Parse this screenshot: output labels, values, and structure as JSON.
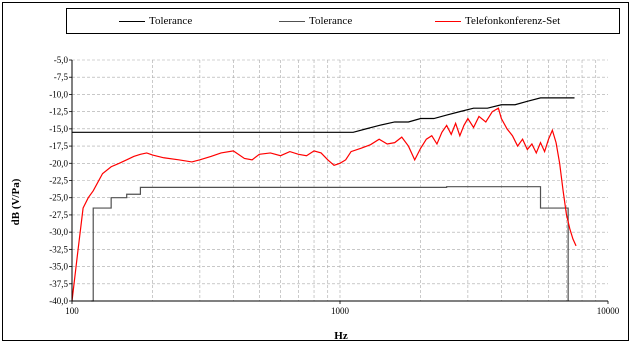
{
  "chart_data": {
    "type": "line",
    "title": "",
    "xlabel": "Hz",
    "ylabel": "dB (V/Pa)",
    "xscale": "log",
    "xlim": [
      100,
      10000
    ],
    "ylim": [
      -40,
      -5
    ],
    "grid": true,
    "legend_position": "top",
    "x_ticks": [
      100,
      1000,
      10000
    ],
    "x_tick_labels": [
      "100",
      "1000",
      "10000"
    ],
    "y_ticks": [
      -5,
      -7.5,
      -10,
      -12.5,
      -15,
      -17.5,
      -20,
      -22.5,
      -25,
      -27.5,
      -30,
      -32.5,
      -35,
      -37.5,
      -40
    ],
    "y_tick_labels": [
      "-5,0",
      "-7,5",
      "-10,0",
      "-12,5",
      "-15,0",
      "-17,5",
      "-20,0",
      "-22,5",
      "-25,0",
      "-27,5",
      "-30,0",
      "-32,5",
      "-35,0",
      "-37,5",
      "-40,0"
    ],
    "series": [
      {
        "name": "Tolerance",
        "color": "#000000",
        "x": [
          100,
          1120,
          1250,
          1400,
          1600,
          1800,
          2000,
          2240,
          2500,
          2800,
          3150,
          3550,
          4000,
          4500,
          5000,
          5600,
          6300,
          7500
        ],
        "y": [
          -15.5,
          -15.5,
          -15.0,
          -14.5,
          -14.0,
          -14.0,
          -13.5,
          -13.5,
          -13.0,
          -12.5,
          -12.0,
          -12.0,
          -11.5,
          -11.5,
          -11.0,
          -10.5,
          -10.5,
          -10.5
        ]
      },
      {
        "name": "Tolerance",
        "color": "#505050",
        "x": [
          118,
          120,
          120,
          140,
          140,
          160,
          160,
          180,
          180,
          2500,
          2500,
          5600,
          5600,
          5600,
          7100,
          7100
        ],
        "y": [
          -40,
          -40,
          -26.5,
          -26.5,
          -25,
          -25,
          -24.5,
          -24.5,
          -23.5,
          -23.5,
          -23.4,
          -23.4,
          -23.4,
          -26.5,
          -26.5,
          -40
        ]
      },
      {
        "name": "Telefonkonferenz-Set",
        "color": "#ff0000",
        "x": [
          100,
          105,
          110,
          115,
          120,
          130,
          140,
          150,
          160,
          170,
          180,
          190,
          200,
          220,
          250,
          280,
          300,
          330,
          360,
          400,
          440,
          470,
          500,
          550,
          600,
          650,
          700,
          750,
          800,
          850,
          900,
          950,
          1000,
          1050,
          1100,
          1200,
          1300,
          1400,
          1500,
          1600,
          1700,
          1800,
          1900,
          2000,
          2100,
          2200,
          2300,
          2400,
          2500,
          2600,
          2700,
          2800,
          2900,
          3000,
          3150,
          3300,
          3500,
          3700,
          3900,
          4000,
          4200,
          4400,
          4600,
          4800,
          5000,
          5200,
          5400,
          5600,
          5800,
          6000,
          6200,
          6400,
          6600,
          6800,
          7000,
          7200,
          7400,
          7600
        ],
        "y": [
          -40,
          -33,
          -26.5,
          -25,
          -24,
          -21.5,
          -20.5,
          -20,
          -19.5,
          -19,
          -18.7,
          -18.5,
          -18.8,
          -19.2,
          -19.5,
          -19.8,
          -19.5,
          -19,
          -18.5,
          -18.2,
          -19.3,
          -19.5,
          -18.7,
          -18.5,
          -18.9,
          -18.3,
          -18.7,
          -18.9,
          -18.2,
          -18.5,
          -19.5,
          -20.3,
          -20,
          -19.5,
          -18.3,
          -17.8,
          -17.3,
          -16.5,
          -17.2,
          -17.0,
          -16.2,
          -17.5,
          -19.5,
          -17.8,
          -16.5,
          -16.0,
          -17.2,
          -15.5,
          -14.5,
          -15.8,
          -14.2,
          -16.0,
          -14.5,
          -13.5,
          -14.8,
          -13.2,
          -14.0,
          -12.5,
          -12.0,
          -13.5,
          -15.0,
          -16.0,
          -17.5,
          -16.5,
          -18.0,
          -17.2,
          -18.5,
          -17.0,
          -18.3,
          -16.5,
          -15.2,
          -17.0,
          -20.0,
          -24.0,
          -27.5,
          -29.5,
          -31.0,
          -32.0
        ]
      }
    ]
  }
}
